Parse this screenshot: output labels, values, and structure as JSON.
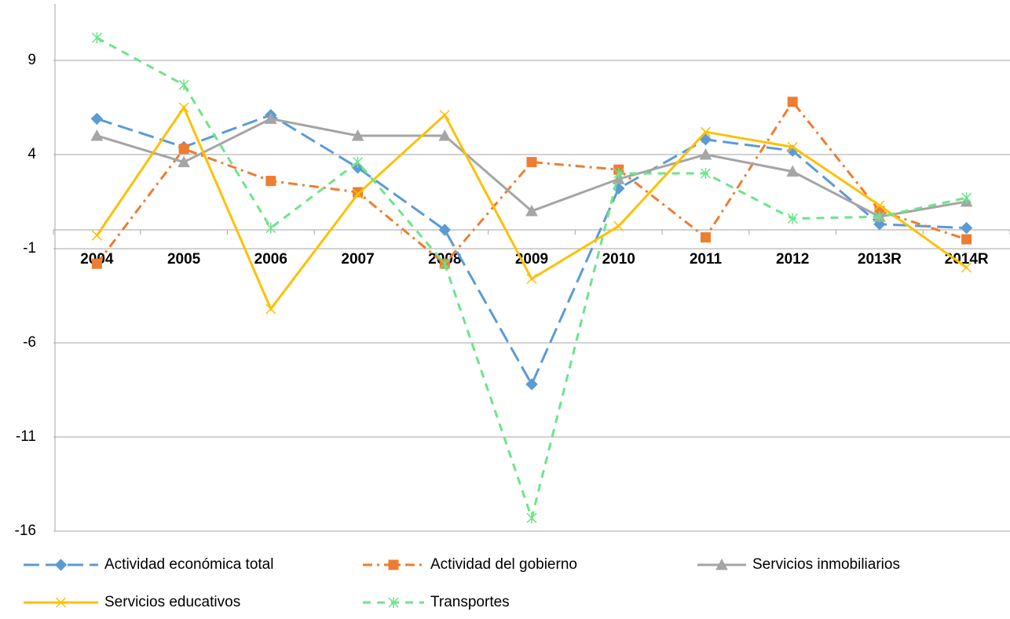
{
  "chart_data": {
    "type": "line",
    "categories": [
      "2004",
      "2005",
      "2006",
      "2007",
      "2008",
      "2009",
      "2010",
      "2011",
      "2012",
      "2013R",
      "2014R"
    ],
    "series": [
      {
        "name": "Actividad económica total",
        "color": "#5b9bd5",
        "dash": "20,8",
        "marker": "diamond",
        "values": [
          5.9,
          4.4,
          6.1,
          3.3,
          0.0,
          -8.2,
          2.2,
          4.8,
          4.2,
          0.3,
          0.1
        ]
      },
      {
        "name": "Actividad del gobierno",
        "color": "#ed7d31",
        "dash": "12,6,3,6",
        "marker": "square",
        "values": [
          -1.8,
          4.3,
          2.6,
          2.0,
          -1.8,
          3.6,
          3.2,
          -0.4,
          6.8,
          1.0,
          -0.5
        ]
      },
      {
        "name": "Servicios inmobiliarios",
        "color": "#a5a5a5",
        "dash": "none",
        "marker": "triangle",
        "values": [
          5.0,
          3.6,
          5.9,
          5.0,
          5.0,
          1.0,
          2.7,
          4.0,
          3.1,
          0.7,
          1.5
        ]
      },
      {
        "name": "Servicios educativos",
        "color": "#ffc000",
        "dash": "none",
        "marker": "x",
        "values": [
          -0.3,
          6.5,
          -4.2,
          1.9,
          6.1,
          -2.6,
          0.2,
          5.2,
          4.4,
          1.3,
          -2.0
        ]
      },
      {
        "name": "Transportes",
        "color": "#6ee48a",
        "dash": "10,8",
        "marker": "star",
        "values": [
          10.2,
          7.7,
          0.1,
          3.6,
          -1.8,
          -15.3,
          3.0,
          3.0,
          0.6,
          0.7,
          1.7
        ]
      }
    ],
    "ylim": [
      -16,
      12
    ],
    "yticks": [
      -16,
      -11,
      -6,
      -1,
      4,
      9
    ],
    "grid": true,
    "legend": "bottom"
  }
}
